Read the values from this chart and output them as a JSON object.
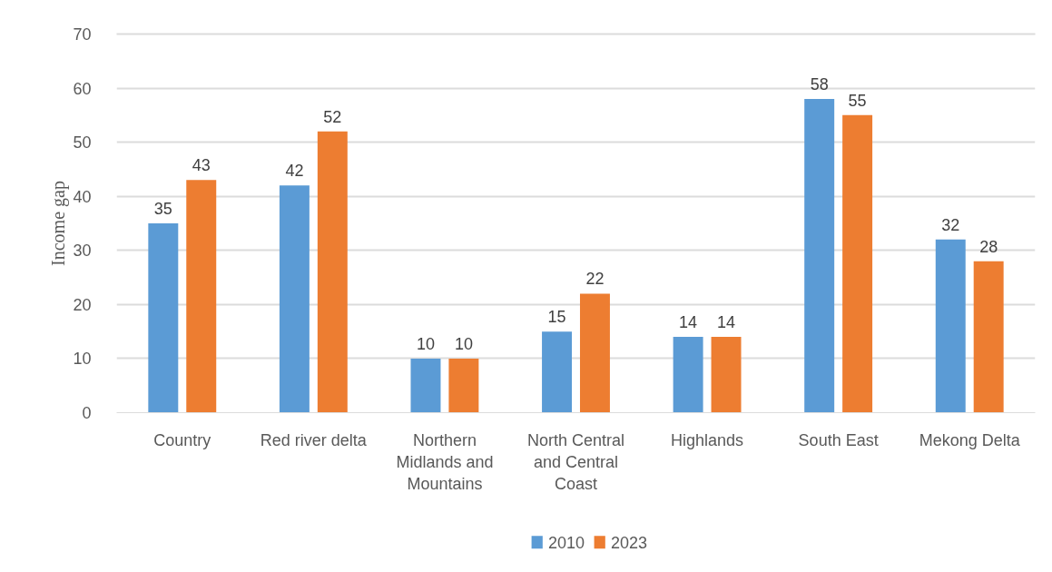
{
  "chart_data": {
    "type": "bar",
    "categories": [
      "Country",
      "Red river delta",
      "Northern Midlands and Mountains",
      "North Central and Central Coast",
      "Highlands",
      "South East",
      "Mekong Delta"
    ],
    "series": [
      {
        "name": "2010",
        "color": "#5b9bd5",
        "values": [
          35,
          42,
          10,
          15,
          14,
          58,
          32
        ]
      },
      {
        "name": "2023",
        "color": "#ed7d31",
        "values": [
          43,
          52,
          10,
          22,
          14,
          55,
          28
        ]
      }
    ],
    "ylabel": "Income gap",
    "ylim": [
      0,
      70
    ],
    "yticks": [
      0,
      10,
      20,
      30,
      40,
      50,
      60,
      70
    ],
    "grid": "y",
    "legend": "bottom",
    "data_labels": true
  }
}
